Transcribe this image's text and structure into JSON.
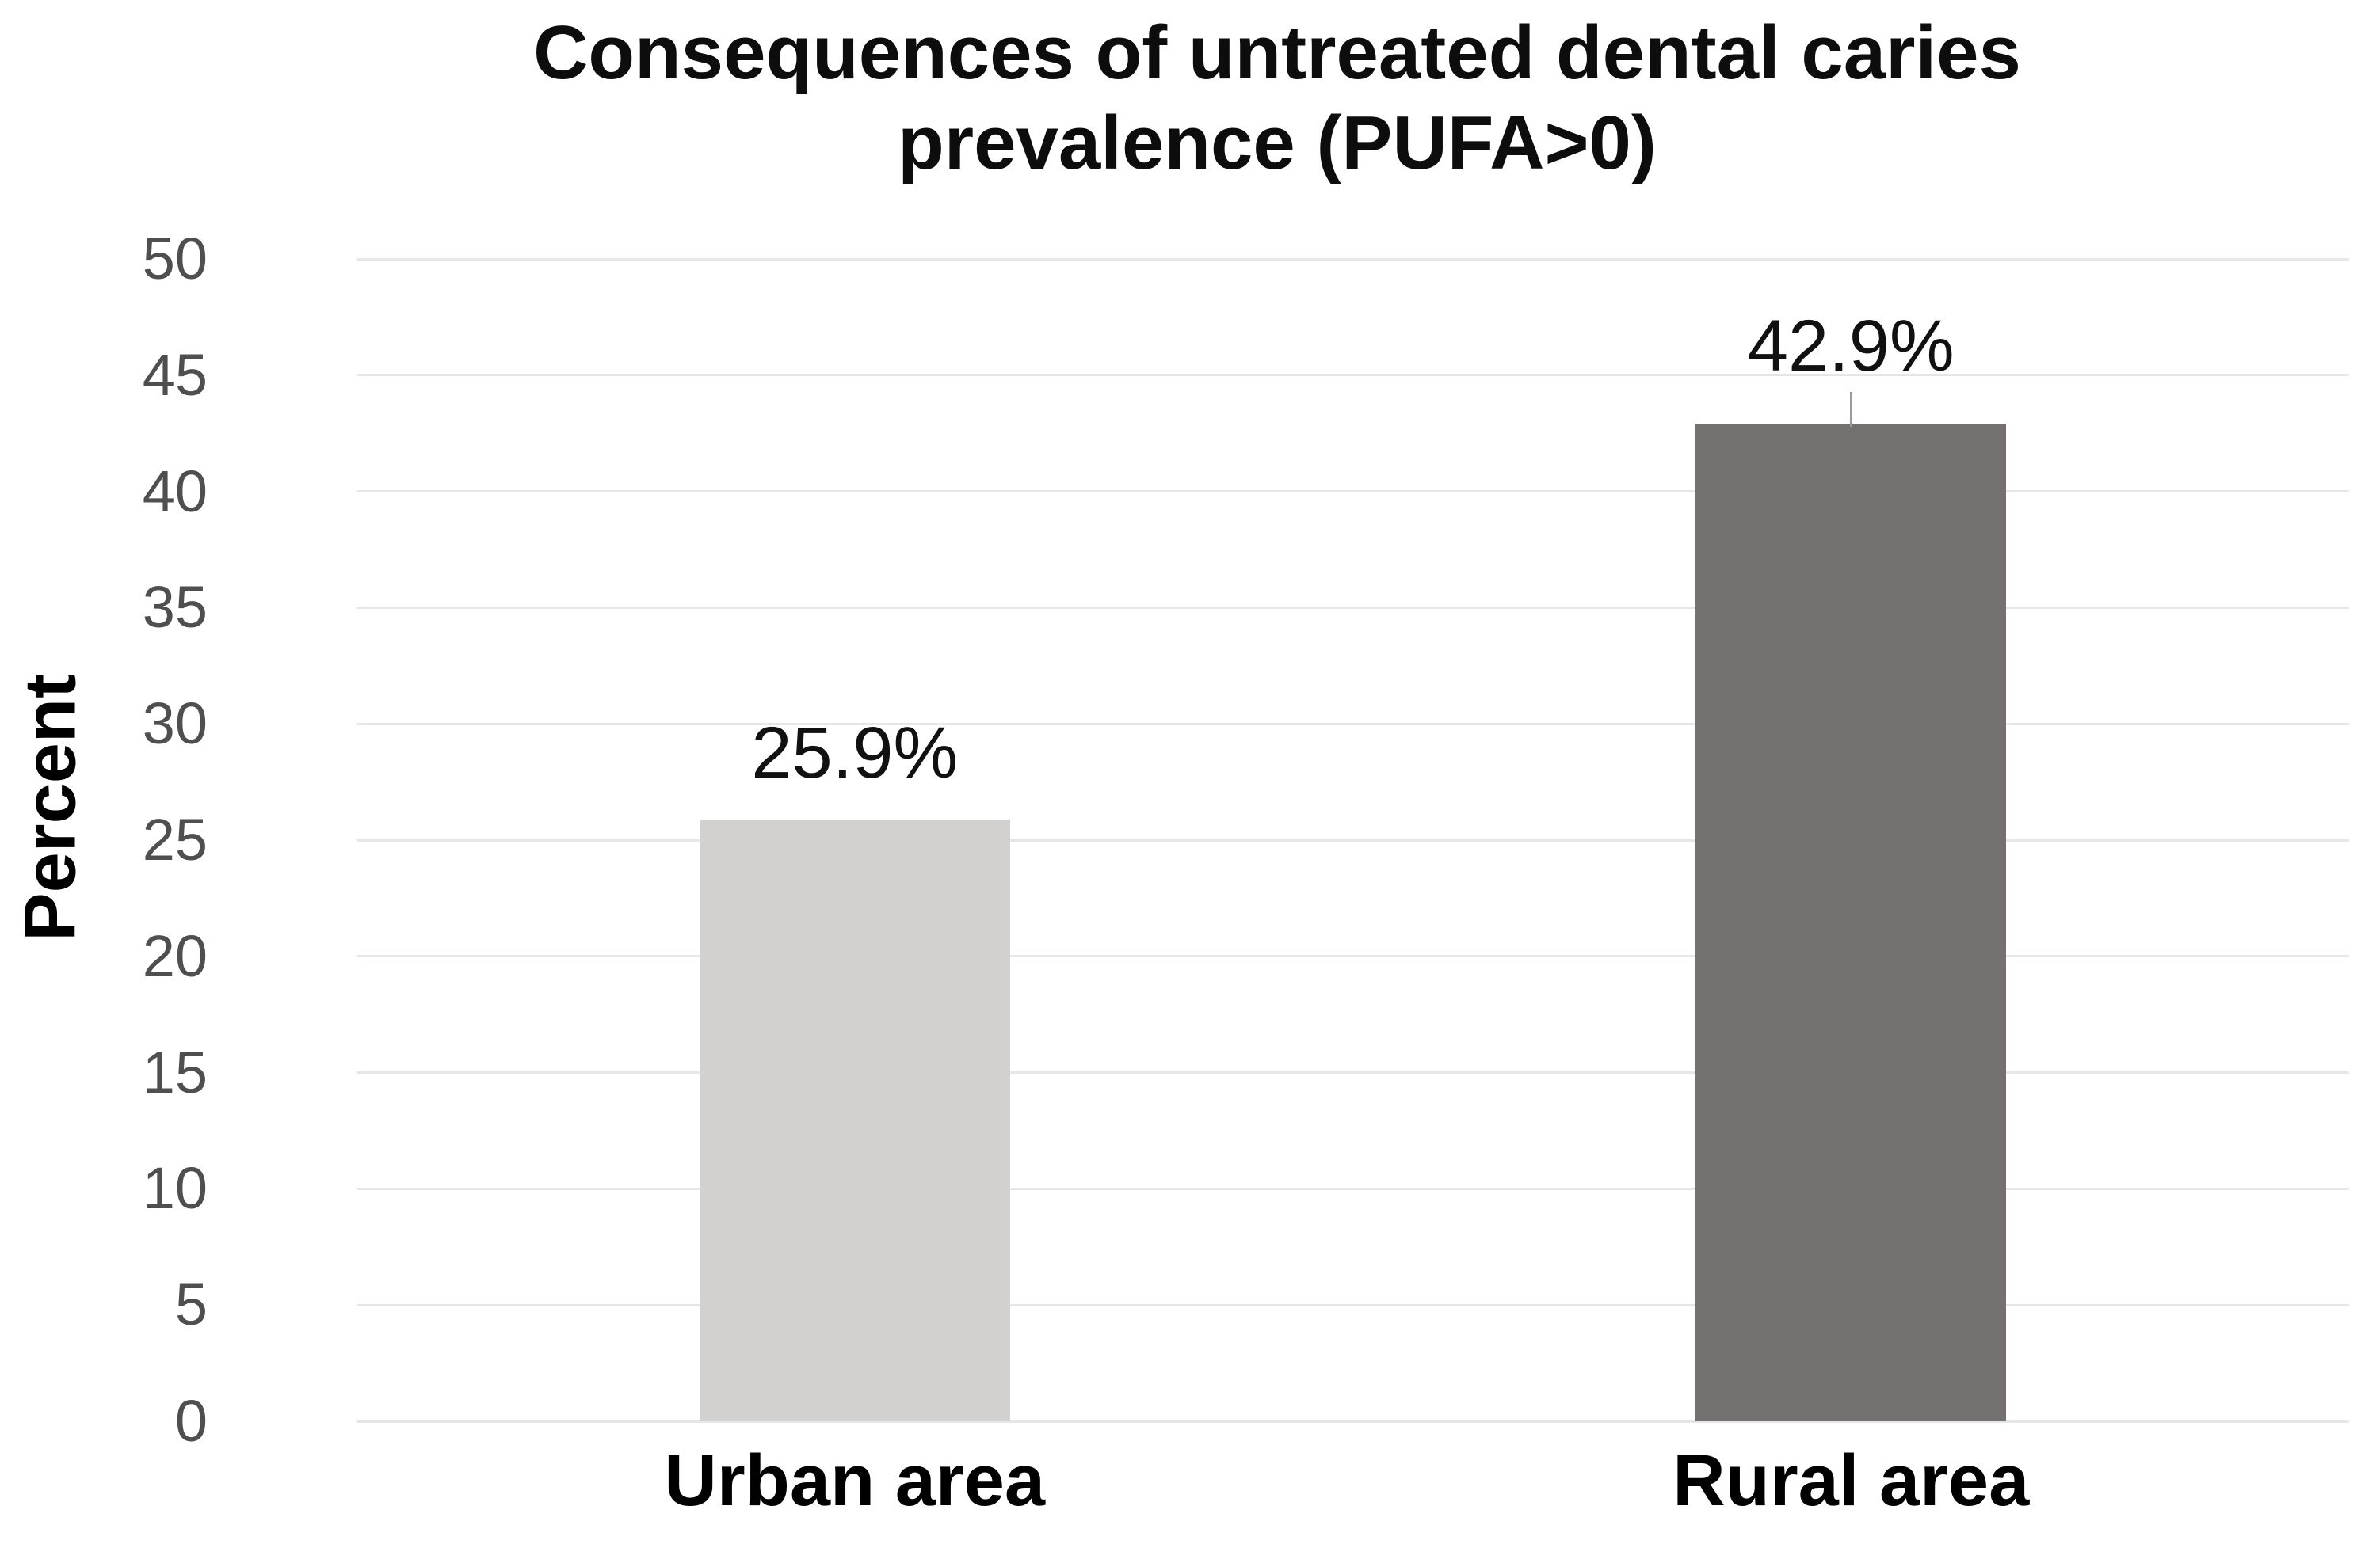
{
  "chart_data": {
    "type": "bar",
    "title": "Consequences of untreated dental caries prevalence (PUFA>0)",
    "title_line1": "Consequences of untreated dental caries",
    "title_line2": "prevalence (PUFA>0)",
    "ylabel": "Percent",
    "xlabel": "",
    "ylim": [
      0,
      50
    ],
    "ytick_interval": 5,
    "yticks": [
      0,
      5,
      10,
      15,
      20,
      25,
      30,
      35,
      40,
      45,
      50
    ],
    "categories": [
      "Urban area",
      "Rural area"
    ],
    "values": [
      25.9,
      42.9
    ],
    "data_labels": [
      "25.9%",
      "42.9%"
    ],
    "bar_colors": [
      "#d3d0d0",
      "#757170"
    ],
    "label_leader_line": [
      false,
      true
    ],
    "grid": true,
    "legend_position": "none",
    "colors": {
      "gridline": "#e7e7e7",
      "tick_text": "#4f4f4f",
      "text": "#000000",
      "leader_line": "#9b9b9b",
      "background": "#ffffff"
    }
  }
}
